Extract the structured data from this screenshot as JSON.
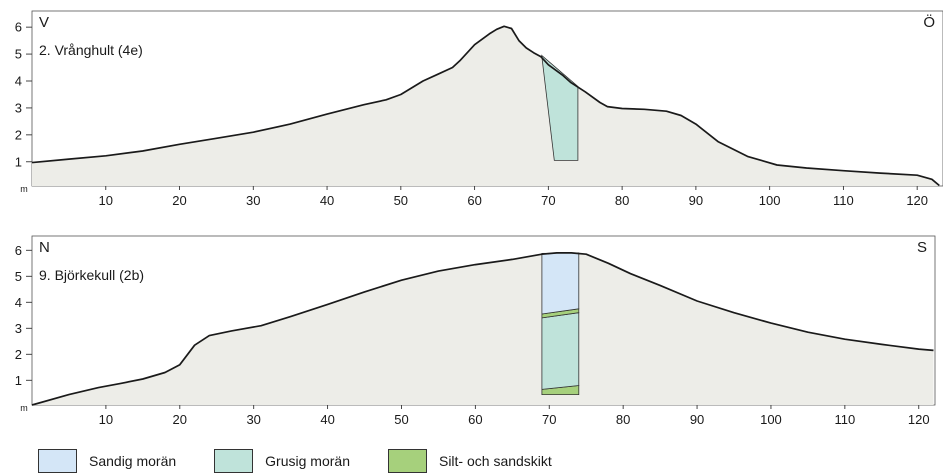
{
  "panels": [
    {
      "title": "2. Vrånghult (4e)",
      "left_label": "V",
      "right_label": "Ö",
      "unit": "m",
      "y_ticks": [
        1,
        2,
        3,
        4,
        5,
        6
      ],
      "x_ticks": [
        10,
        20,
        30,
        40,
        50,
        60,
        70,
        80,
        90,
        100,
        110,
        120
      ],
      "profile": [
        [
          0,
          0.97
        ],
        [
          5,
          1.1
        ],
        [
          10,
          1.22
        ],
        [
          15,
          1.4
        ],
        [
          20,
          1.65
        ],
        [
          25,
          1.87
        ],
        [
          30,
          2.1
        ],
        [
          35,
          2.4
        ],
        [
          40,
          2.77
        ],
        [
          45,
          3.12
        ],
        [
          48,
          3.3
        ],
        [
          50,
          3.5
        ],
        [
          53,
          4.0
        ],
        [
          55,
          4.25
        ],
        [
          57,
          4.5
        ],
        [
          58,
          4.75
        ],
        [
          60,
          5.35
        ],
        [
          62,
          5.75
        ],
        [
          63,
          5.92
        ],
        [
          64,
          6.03
        ],
        [
          65,
          5.95
        ],
        [
          66,
          5.5
        ],
        [
          67,
          5.23
        ],
        [
          68,
          5.05
        ],
        [
          69,
          4.9
        ],
        [
          70,
          4.6
        ],
        [
          72,
          4.2
        ],
        [
          73,
          3.95
        ],
        [
          75,
          3.6
        ],
        [
          77,
          3.2
        ],
        [
          78,
          3.05
        ],
        [
          80,
          2.98
        ],
        [
          83,
          2.95
        ],
        [
          86,
          2.88
        ],
        [
          88,
          2.72
        ],
        [
          90,
          2.4
        ],
        [
          93,
          1.75
        ],
        [
          97,
          1.2
        ],
        [
          101,
          0.88
        ],
        [
          105,
          0.77
        ],
        [
          110,
          0.67
        ],
        [
          115,
          0.58
        ],
        [
          120,
          0.5
        ],
        [
          122,
          0.35
        ],
        [
          123,
          0.12
        ]
      ],
      "columns": [
        {
          "material": "grusig",
          "x_top_left": 69.1,
          "x_top_right": 74.0,
          "x_bottom_left": 70.8,
          "x_bottom_right": 74.0,
          "top_left": 4.95,
          "top_right": 3.8,
          "bottom": 1.05
        }
      ]
    },
    {
      "title": "9. Björkekull (2b)",
      "left_label": "N",
      "right_label": "S",
      "unit": "m",
      "y_ticks": [
        1,
        2,
        3,
        4,
        5,
        6
      ],
      "x_ticks": [
        10,
        20,
        30,
        40,
        50,
        60,
        70,
        80,
        90,
        100,
        110,
        120
      ],
      "profile": [
        [
          0,
          0.05
        ],
        [
          5,
          0.45
        ],
        [
          9,
          0.72
        ],
        [
          12,
          0.88
        ],
        [
          15,
          1.05
        ],
        [
          18,
          1.3
        ],
        [
          20,
          1.6
        ],
        [
          22,
          2.35
        ],
        [
          24,
          2.72
        ],
        [
          27,
          2.9
        ],
        [
          31,
          3.1
        ],
        [
          35,
          3.45
        ],
        [
          40,
          3.92
        ],
        [
          45,
          4.4
        ],
        [
          50,
          4.85
        ],
        [
          55,
          5.2
        ],
        [
          60,
          5.45
        ],
        [
          65,
          5.65
        ],
        [
          69,
          5.85
        ],
        [
          71,
          5.9
        ],
        [
          73,
          5.9
        ],
        [
          75,
          5.85
        ],
        [
          78,
          5.5
        ],
        [
          81,
          5.1
        ],
        [
          85,
          4.65
        ],
        [
          90,
          4.05
        ],
        [
          95,
          3.6
        ],
        [
          100,
          3.2
        ],
        [
          105,
          2.85
        ],
        [
          110,
          2.58
        ],
        [
          115,
          2.38
        ],
        [
          120,
          2.2
        ],
        [
          122,
          2.15
        ]
      ],
      "column": {
        "x_left": 69.0,
        "x_right": 74.0,
        "layers": [
          {
            "material": "silt",
            "bottom_left": 0.45,
            "bottom_right": 0.45,
            "top_left": 0.65,
            "top_right": 0.8
          },
          {
            "material": "grusig",
            "bottom_left": 0.65,
            "bottom_right": 0.8,
            "top_left": 3.4,
            "top_right": 3.6
          },
          {
            "material": "silt",
            "bottom_left": 3.4,
            "bottom_right": 3.6,
            "top_left": 3.55,
            "top_right": 3.75
          },
          {
            "material": "sandig",
            "bottom_left": 3.55,
            "bottom_right": 3.75,
            "top_left": 5.88,
            "top_right": 5.9
          }
        ]
      }
    }
  ],
  "legend": [
    {
      "key": "sandig",
      "label": "Sandig morän",
      "color": "#d4e6f7"
    },
    {
      "key": "grusig",
      "label": "Grusig morän",
      "color": "#bfe3da"
    },
    {
      "key": "silt",
      "label": "Silt- och sandskikt",
      "color": "#a6d07c"
    }
  ],
  "colors": {
    "ground": "#ededE8",
    "outline": "#1a1a1a"
  }
}
